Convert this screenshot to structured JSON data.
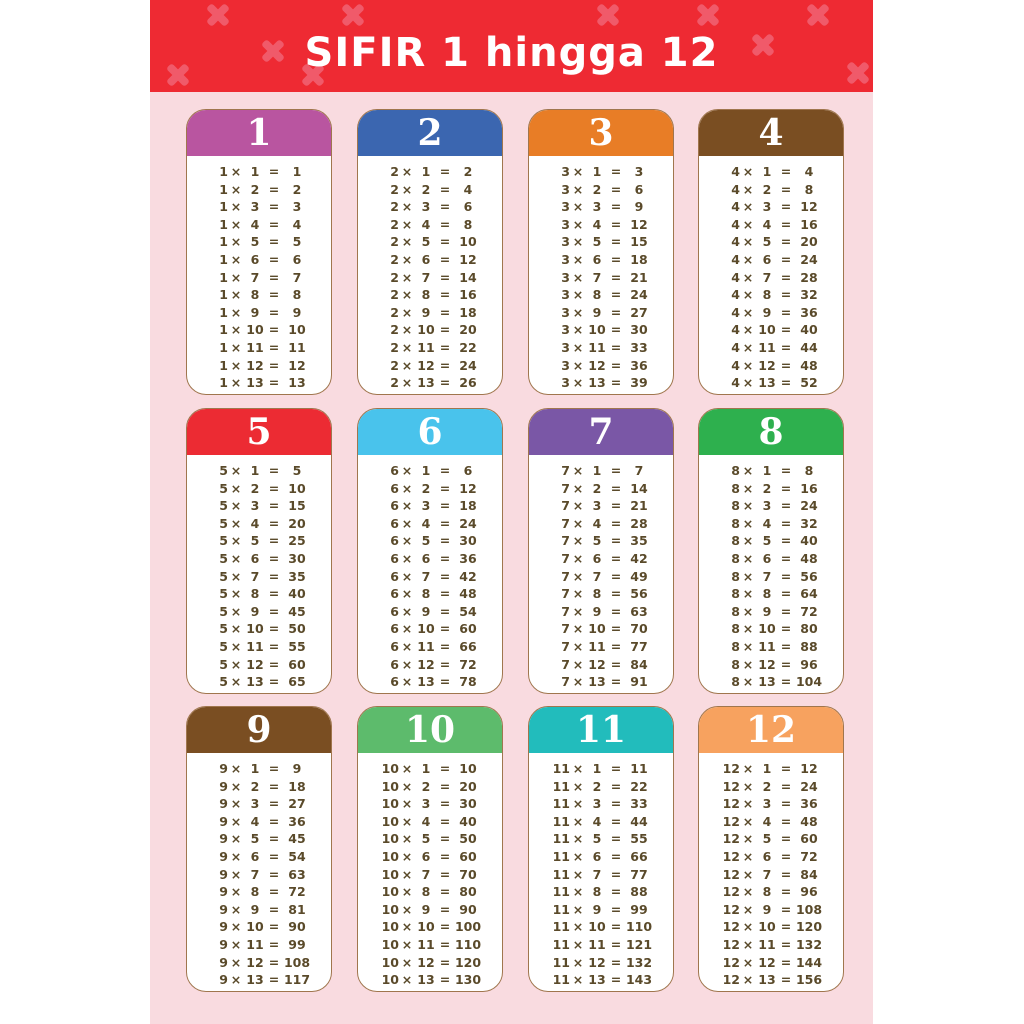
{
  "title": "SIFIR 1 hingga 12",
  "tables": [
    {
      "number": "1",
      "color": "#b955a0"
    },
    {
      "number": "2",
      "color": "#3b66b0"
    },
    {
      "number": "3",
      "color": "#e87d26"
    },
    {
      "number": "4",
      "color": "#7a4e22"
    },
    {
      "number": "5",
      "color": "#ec2b33"
    },
    {
      "number": "6",
      "color": "#49c3ec"
    },
    {
      "number": "7",
      "color": "#7a57a6"
    },
    {
      "number": "8",
      "color": "#2eb04e"
    },
    {
      "number": "9",
      "color": "#7a4e22"
    },
    {
      "number": "10",
      "color": "#5dbb6c"
    },
    {
      "number": "11",
      "color": "#22bcbc"
    },
    {
      "number": "12",
      "color": "#f7a25f"
    }
  ],
  "multipliers": [
    "1",
    "2",
    "3",
    "4",
    "5",
    "6",
    "7",
    "8",
    "9",
    "10",
    "11",
    "12",
    "13"
  ],
  "symbols": {
    "times": "×",
    "equals": "="
  },
  "products": [
    [
      "1",
      "2",
      "3",
      "4",
      "5",
      "6",
      "7",
      "8",
      "9",
      "10",
      "11",
      "12",
      "13"
    ],
    [
      "2",
      "4",
      "6",
      "8",
      "10",
      "12",
      "14",
      "16",
      "18",
      "20",
      "22",
      "24",
      "26"
    ],
    [
      "3",
      "6",
      "9",
      "12",
      "15",
      "18",
      "21",
      "24",
      "27",
      "30",
      "33",
      "36",
      "39"
    ],
    [
      "4",
      "8",
      "12",
      "16",
      "20",
      "24",
      "28",
      "32",
      "36",
      "40",
      "44",
      "48",
      "52"
    ],
    [
      "5",
      "10",
      "15",
      "20",
      "25",
      "30",
      "35",
      "40",
      "45",
      "50",
      "55",
      "60",
      "65"
    ],
    [
      "6",
      "12",
      "18",
      "24",
      "30",
      "36",
      "42",
      "48",
      "54",
      "60",
      "66",
      "72",
      "78"
    ],
    [
      "7",
      "14",
      "21",
      "28",
      "35",
      "42",
      "49",
      "56",
      "63",
      "70",
      "77",
      "84",
      "91"
    ],
    [
      "8",
      "16",
      "24",
      "32",
      "40",
      "48",
      "56",
      "64",
      "72",
      "80",
      "88",
      "96",
      "104"
    ],
    [
      "9",
      "18",
      "27",
      "36",
      "45",
      "54",
      "63",
      "72",
      "81",
      "90",
      "99",
      "108",
      "117"
    ],
    [
      "10",
      "20",
      "30",
      "40",
      "50",
      "60",
      "70",
      "80",
      "90",
      "100",
      "110",
      "120",
      "130"
    ],
    [
      "11",
      "22",
      "33",
      "44",
      "55",
      "66",
      "77",
      "88",
      "99",
      "110",
      "121",
      "132",
      "143"
    ],
    [
      "12",
      "24",
      "36",
      "48",
      "60",
      "72",
      "84",
      "96",
      "108",
      "120",
      "132",
      "144",
      "156"
    ]
  ]
}
